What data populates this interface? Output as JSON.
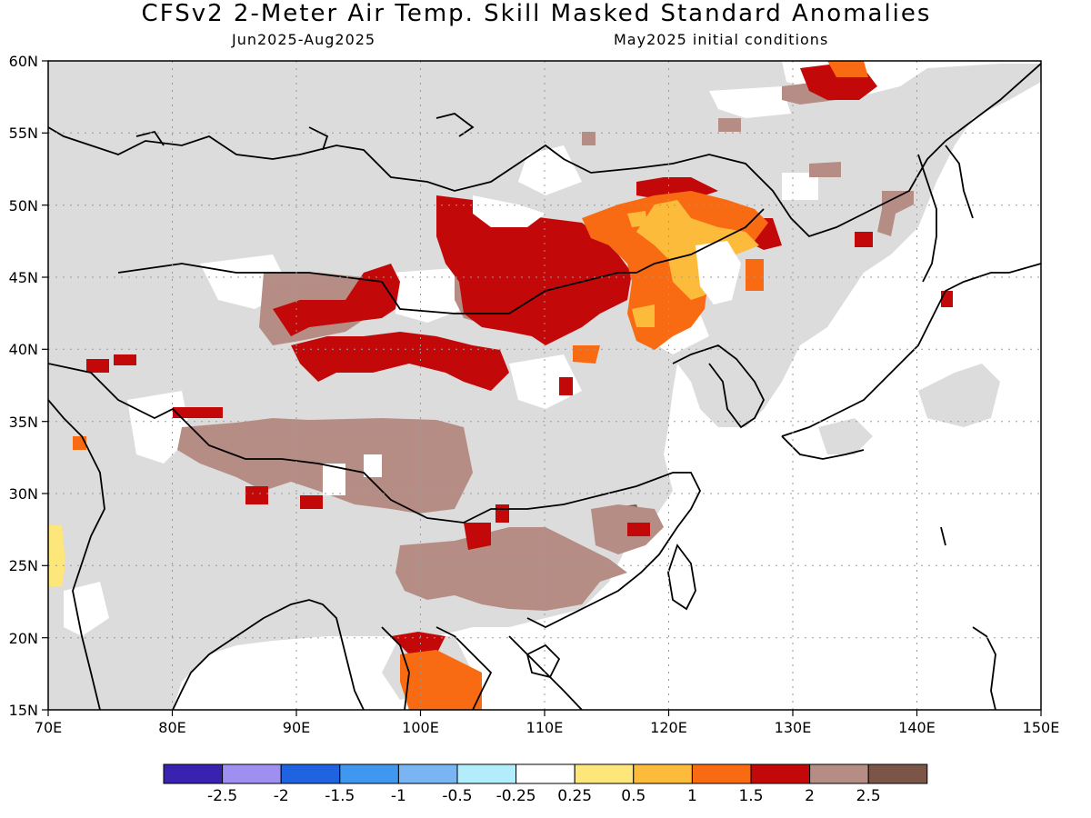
{
  "title": "CFSv2 2-Meter Air Temp. Skill Masked Standard Anomalies",
  "subtitle_left": "Jun2025-Aug2025",
  "subtitle_right": "May2025 initial conditions",
  "map": {
    "lon_range": [
      70,
      150
    ],
    "lat_range": [
      15,
      60
    ],
    "x_ticks": [
      "70E",
      "80E",
      "90E",
      "100E",
      "110E",
      "120E",
      "130E",
      "140E",
      "150E"
    ],
    "y_ticks": [
      "15N",
      "20N",
      "25N",
      "30N",
      "35N",
      "40N",
      "45N",
      "50N",
      "55N",
      "60N"
    ],
    "mask_color": "#dcdcdc",
    "grid": "dotted"
  },
  "colorbar": {
    "colors": [
      "#3a22b0",
      "#9f8ff0",
      "#1f63e0",
      "#3f97f0",
      "#78b5f2",
      "#b3ecfb",
      "#ffffff",
      "#fde67a",
      "#fdbb3c",
      "#f96b12",
      "#c20808",
      "#b58d85",
      "#7a5548"
    ],
    "labels": [
      "-2.5",
      "-2",
      "-1.5",
      "-1",
      "-0.5",
      "-0.25",
      "0.25",
      "0.5",
      "1",
      "1.5",
      "2",
      "2.5"
    ]
  }
}
